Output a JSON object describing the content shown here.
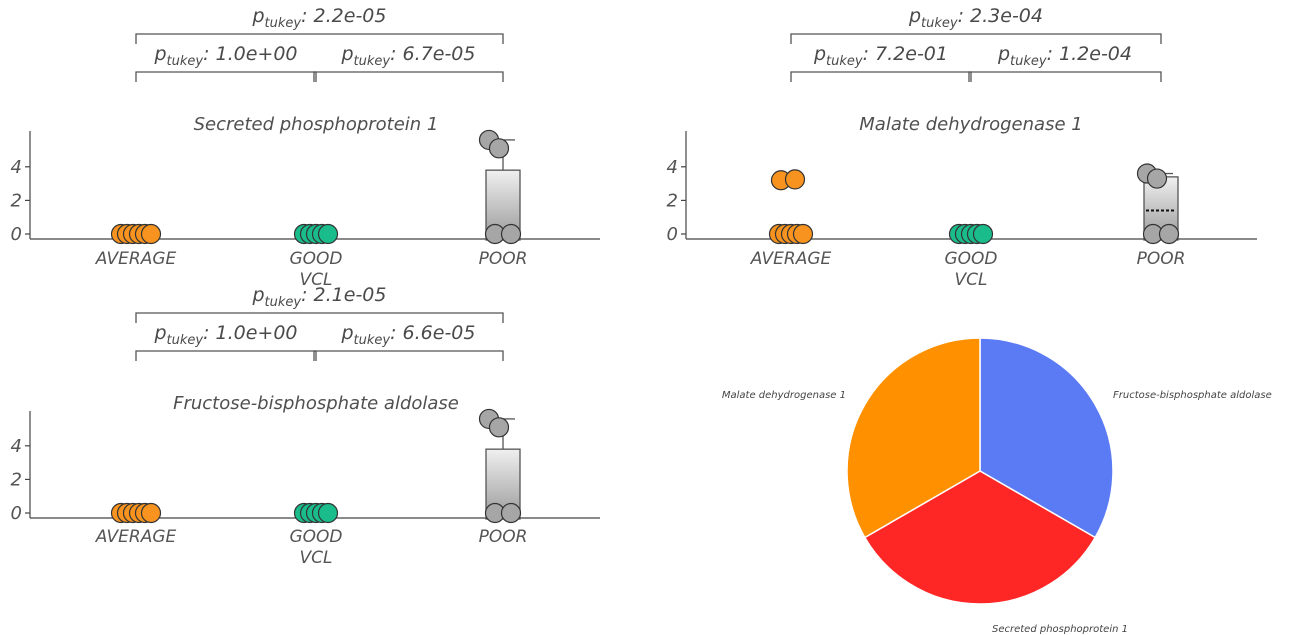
{
  "chart_data": [
    {
      "type": "box-strip",
      "title": "Secreted phosphoprotein 1",
      "xlabel": "VCL",
      "ylabel": "",
      "yticks": [
        0,
        2,
        4
      ],
      "ylim": [
        -0.6,
        6
      ],
      "categories": [
        "AVERAGE",
        "GOOD",
        "POOR"
      ],
      "points": [
        [
          0,
          0,
          0,
          0,
          0,
          0
        ],
        [
          0,
          0,
          0,
          0,
          0
        ],
        [
          0,
          0,
          5.6,
          5.1
        ]
      ],
      "boxes": [
        null,
        null,
        {
          "q1": 0,
          "median": 0,
          "q3": 3.8,
          "whisker_high": 5.6
        }
      ],
      "comparisons": [
        {
          "from": "AVERAGE",
          "to": "POOR",
          "p": "2.2e-05"
        },
        {
          "from": "AVERAGE",
          "to": "GOOD",
          "p": "1.0e+00"
        },
        {
          "from": "GOOD",
          "to": "POOR",
          "p": "6.7e-05"
        }
      ],
      "colors": [
        "#f7931e",
        "#1abc8c",
        "#a6a6a6"
      ]
    },
    {
      "type": "box-strip",
      "title": "Malate dehydrogenase 1",
      "xlabel": "VCL",
      "ylabel": "",
      "yticks": [
        0,
        2,
        4
      ],
      "ylim": [
        -0.6,
        6
      ],
      "categories": [
        "AVERAGE",
        "GOOD",
        "POOR"
      ],
      "points": [
        [
          0,
          0,
          0,
          0,
          0,
          3.2,
          3.25
        ],
        [
          0,
          0,
          0,
          0,
          0
        ],
        [
          0,
          0,
          3.6,
          3.3
        ]
      ],
      "boxes": [
        null,
        null,
        {
          "q1": 0,
          "median": 1.4,
          "q3": 3.4,
          "whisker_high": 3.6
        }
      ],
      "comparisons": [
        {
          "from": "AVERAGE",
          "to": "POOR",
          "p": "2.3e-04"
        },
        {
          "from": "AVERAGE",
          "to": "GOOD",
          "p": "7.2e-01"
        },
        {
          "from": "GOOD",
          "to": "POOR",
          "p": "1.2e-04"
        }
      ],
      "colors": [
        "#f7931e",
        "#1abc8c",
        "#a6a6a6"
      ]
    },
    {
      "type": "box-strip",
      "title": "Fructose-bisphosphate aldolase",
      "xlabel": "VCL",
      "ylabel": "",
      "yticks": [
        0,
        2,
        4
      ],
      "ylim": [
        -0.6,
        6
      ],
      "categories": [
        "AVERAGE",
        "GOOD",
        "POOR"
      ],
      "points": [
        [
          0,
          0,
          0,
          0,
          0,
          0
        ],
        [
          0,
          0,
          0,
          0,
          0
        ],
        [
          0,
          0,
          5.6,
          5.1
        ]
      ],
      "boxes": [
        null,
        null,
        {
          "q1": 0,
          "median": 0,
          "q3": 3.8,
          "whisker_high": 5.6
        }
      ],
      "comparisons": [
        {
          "from": "AVERAGE",
          "to": "POOR",
          "p": "2.1e-05"
        },
        {
          "from": "AVERAGE",
          "to": "GOOD",
          "p": "1.0e+00"
        },
        {
          "from": "GOOD",
          "to": "POOR",
          "p": "6.6e-05"
        }
      ],
      "colors": [
        "#f7931e",
        "#1abc8c",
        "#a6a6a6"
      ]
    },
    {
      "type": "pie",
      "title": "",
      "labels": [
        "Fructose-bisphosphate aldolase",
        "Secreted phosphoprotein 1",
        "Malate dehydrogenase 1"
      ],
      "values": [
        1,
        1,
        1
      ],
      "colors": [
        "#5b7bf5",
        "#ff2626",
        "#ff9100"
      ]
    }
  ],
  "stat_prefix": "p",
  "stat_subscript": "tukey"
}
